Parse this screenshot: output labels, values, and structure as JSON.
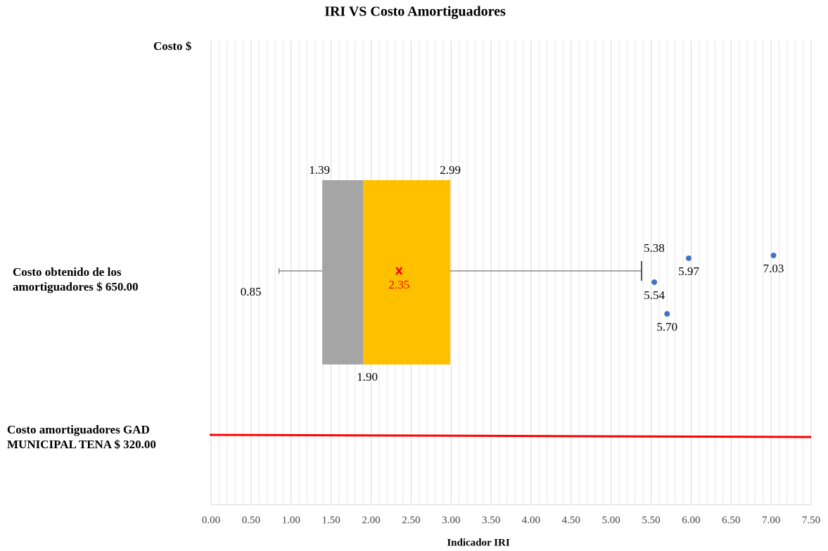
{
  "chart_data": {
    "type": "box",
    "title": "IRI VS Costo Amortiguadores",
    "xlabel": "Indicador IRI",
    "categories": [
      "Costo $",
      "Costo obtenido de los amortiguadores $ 650.00",
      "Costo amortiguadores GAD MUNICIPAL TENA $ 320.00"
    ],
    "box": {
      "min": 0.85,
      "q1": 1.39,
      "median": 1.9,
      "q3": 2.99,
      "max": 5.38,
      "mean": 2.35,
      "outliers": [
        5.54,
        5.7,
        5.97,
        7.03
      ],
      "lower_color": "#a5a5a5",
      "upper_color": "#ffc000",
      "mean_color": "#ff0000",
      "outlier_color": "#4472c4"
    },
    "value_labels": {
      "min": "0.85",
      "q1": "1.39",
      "median": "1.90",
      "q3": "2.99",
      "max": "5.38",
      "mean": "2.35",
      "outliers": [
        "5.54",
        "5.70",
        "5.97",
        "7.03"
      ]
    },
    "reference_line_color": "#ff0000",
    "xlim": [
      0,
      7.5
    ],
    "xticks": [
      {
        "value": 0,
        "label": "0.00"
      },
      {
        "value": 0.5,
        "label": "0.50"
      },
      {
        "value": 1,
        "label": "1.00"
      },
      {
        "value": 1.5,
        "label": "1.50"
      },
      {
        "value": 2,
        "label": "2.00"
      },
      {
        "value": 2.5,
        "label": "2.50"
      },
      {
        "value": 3,
        "label": "3.00"
      },
      {
        "value": 3.5,
        "label": "3.50"
      },
      {
        "value": 4,
        "label": "4.00"
      },
      {
        "value": 4.5,
        "label": "4.50"
      },
      {
        "value": 5,
        "label": "5.00"
      },
      {
        "value": 5.5,
        "label": "5.50"
      },
      {
        "value": 6,
        "label": "6.00"
      },
      {
        "value": 6.5,
        "label": "6.50"
      },
      {
        "value": 7,
        "label": "7.00"
      },
      {
        "value": 7.5,
        "label": "7.50"
      }
    ],
    "grid": true
  }
}
